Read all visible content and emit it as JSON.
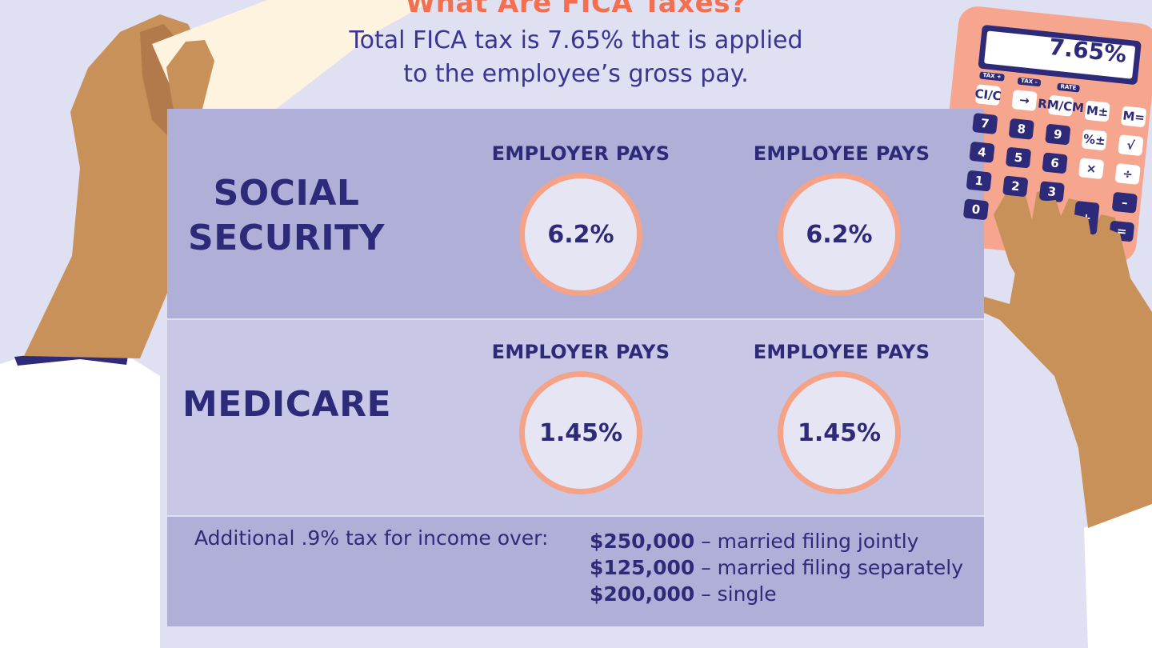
{
  "header": {
    "title": "What Are FICA Taxes?",
    "subtitle_line1": "Total FICA tax is 7.65% that is applied",
    "subtitle_line2": "to the employee’s gross pay."
  },
  "social_security": {
    "label_line1": "SOCIAL",
    "label_line2": "SECURITY",
    "employer_heading": "EMPLOYER PAYS",
    "employee_heading": "EMPLOYEE PAYS",
    "employer_rate": "6.2%",
    "employee_rate": "6.2%"
  },
  "medicare": {
    "label": "MEDICARE",
    "employer_heading": "EMPLOYER PAYS",
    "employee_heading": "EMPLOYEE PAYS",
    "employer_rate": "1.45%",
    "employee_rate": "1.45%"
  },
  "additional": {
    "label": "Additional .9% tax for income over:",
    "brackets": [
      {
        "amount": "$250,000",
        "desc": " – married filing jointly"
      },
      {
        "amount": "$125,000",
        "desc": " – married filing separately"
      },
      {
        "amount": "$200,000",
        "desc": " – single"
      }
    ]
  },
  "calculator": {
    "display": "7.65%",
    "tags": [
      "TAX +",
      "TAX –",
      "RATE"
    ],
    "keys": [
      [
        "CI/C",
        "→",
        "RM/CM",
        "M±",
        "M="
      ],
      [
        "7",
        "8",
        "9",
        "%±",
        "√"
      ],
      [
        "4",
        "5",
        "6",
        "×",
        "÷"
      ],
      [
        "1",
        "2",
        "3",
        "",
        "–"
      ],
      [
        "0",
        "",
        "",
        "+",
        "="
      ]
    ]
  },
  "colors": {
    "background": "#dfe0f1",
    "panel_dark": "#b0afd8",
    "panel_light": "#c8c8e6",
    "navy": "#2e2a7a",
    "accent_orange": "#f2704f",
    "circle_ring": "#f4a288",
    "calculator_body": "#f6a68e",
    "skin": "#c8915a"
  }
}
